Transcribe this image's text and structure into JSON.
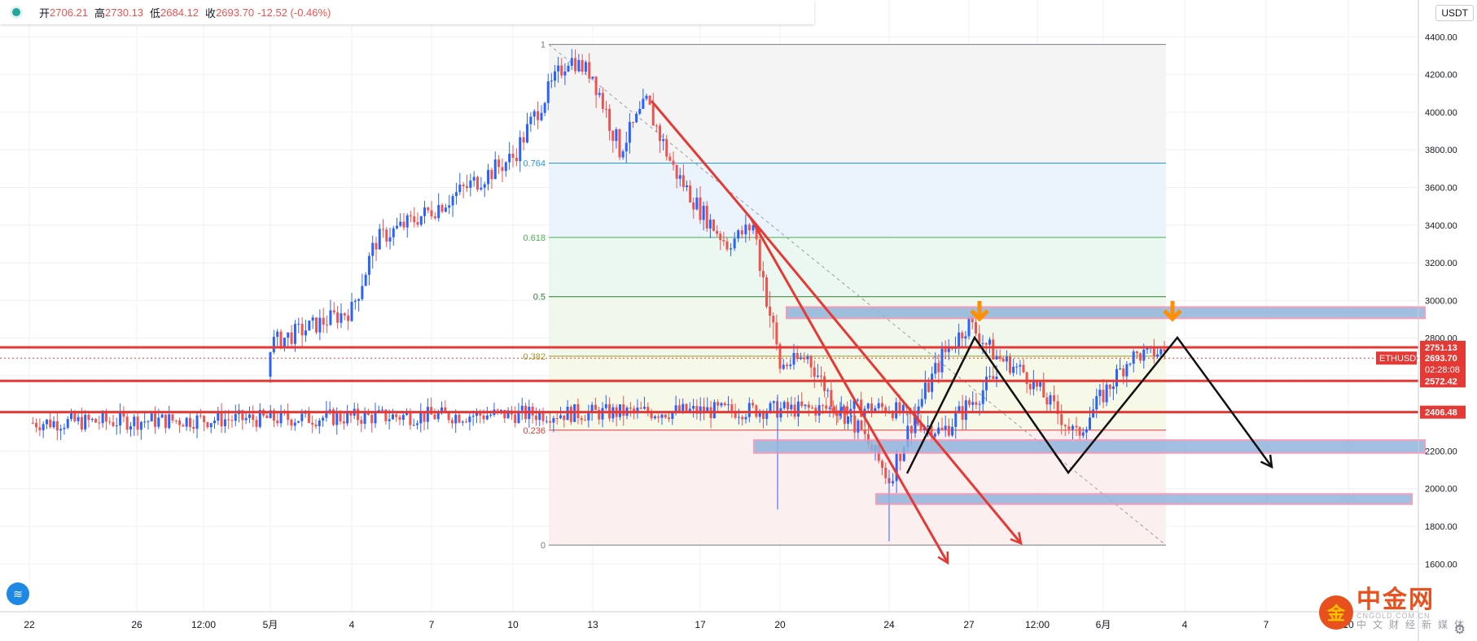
{
  "header": {
    "status_dot_color": "#26a69a",
    "open_label": "开",
    "open": "2706.21",
    "high_label": "高",
    "high": "2730.13",
    "low_label": "低",
    "low": "2684.12",
    "close_label": "收",
    "close": "2693.70",
    "change": "-12.52 (-0.46%)",
    "currency": "USDT"
  },
  "chart_data": {
    "type": "candlestick",
    "symbol": "ETHUSDT",
    "y_axis": {
      "min": 1450,
      "max": 4700,
      "ticks": [
        "4400.00",
        "4200.00",
        "4000.00",
        "3800.00",
        "3600.00",
        "3400.00",
        "3200.00",
        "3000.00",
        "2800.00",
        "2200.00",
        "2000.00",
        "1800.00",
        "1600.00"
      ]
    },
    "x_axis": {
      "ticks": [
        "22",
        "26",
        "12:00",
        "5月",
        "4",
        "7",
        "10",
        "13",
        "17",
        "20",
        "24",
        "27",
        "12:00",
        "6月",
        "4",
        "7",
        "10"
      ]
    },
    "anchors": [
      [
        "22",
        2350
      ],
      [
        "24",
        2430
      ],
      [
        "26",
        2300
      ],
      [
        "28",
        2600
      ],
      [
        "5月",
        2770
      ],
      [
        "4",
        2950
      ],
      [
        "5",
        3320
      ],
      [
        "7",
        3480
      ],
      [
        "10",
        3760
      ],
      [
        "11",
        4050
      ],
      [
        "12",
        4290
      ],
      [
        "13",
        4200
      ],
      [
        "14",
        3800
      ],
      [
        "15",
        4050
      ],
      [
        "16",
        3700
      ],
      [
        "17",
        3480
      ],
      [
        "18",
        3300
      ],
      [
        "19",
        3400
      ],
      [
        "20",
        2650
      ],
      [
        "21",
        2700
      ],
      [
        "22",
        2450
      ],
      [
        "23",
        2300
      ],
      [
        "24",
        2050
      ],
      [
        "25",
        2400
      ],
      [
        "26",
        2700
      ],
      [
        "27",
        2880
      ],
      [
        "28",
        2700
      ],
      [
        "29",
        2620
      ],
      [
        "30",
        2450
      ],
      [
        "31",
        2280
      ],
      [
        "6月",
        2500
      ],
      [
        "2",
        2700
      ],
      [
        "3",
        2730
      ]
    ],
    "price_labels": [
      {
        "value": 2751.13,
        "text": "2751.13"
      },
      {
        "value": 2572.42,
        "text": "2572.42"
      },
      {
        "value": 2406.48,
        "text": "2406.48"
      }
    ],
    "current_price": {
      "symbol": "ETHUSDT",
      "price": "2693.70",
      "countdown": "02:28:08",
      "value": 2693.7
    },
    "fibonacci": {
      "levels": [
        {
          "ratio": "1",
          "price": 4360,
          "fill": "#f2f2f2",
          "line": "#787b86"
        },
        {
          "ratio": "0.764",
          "price": 3730,
          "fill": "#e8f1fb",
          "line": "#2196f3"
        },
        {
          "ratio": "0.618",
          "price": 3335,
          "fill": "#e8f6ee",
          "line": "#4caf50"
        },
        {
          "ratio": "0.5",
          "price": 3020,
          "fill": "#edf7ea",
          "line": "#2e7d32"
        },
        {
          "ratio": "0.382",
          "price": 2704,
          "fill": "#f4f8e4",
          "line": "#9e9d24"
        },
        {
          "ratio": "0.236",
          "price": 2311,
          "fill": "#fcecec",
          "line": "#e53935"
        },
        {
          "ratio": "0",
          "price": 1700,
          "fill": "#fcecec",
          "line": "#787b86"
        }
      ]
    },
    "zones": [
      {
        "low": 2905,
        "high": 2965
      },
      {
        "low": 2190,
        "high": 2258
      },
      {
        "low": 1918,
        "high": 1972
      }
    ],
    "horizontal_lines": [
      2751.13,
      2572.42,
      2406.48
    ],
    "colors": {
      "up": "#2962ff",
      "down": "#ef5350",
      "line": "#e53935",
      "arrow": "#ff8f00"
    }
  },
  "branding": {
    "logo_char": "金",
    "logo_text": "中金网",
    "logo_sub": "CNGOLD.COM.CN",
    "logo_cn": "中文财经新媒体"
  }
}
